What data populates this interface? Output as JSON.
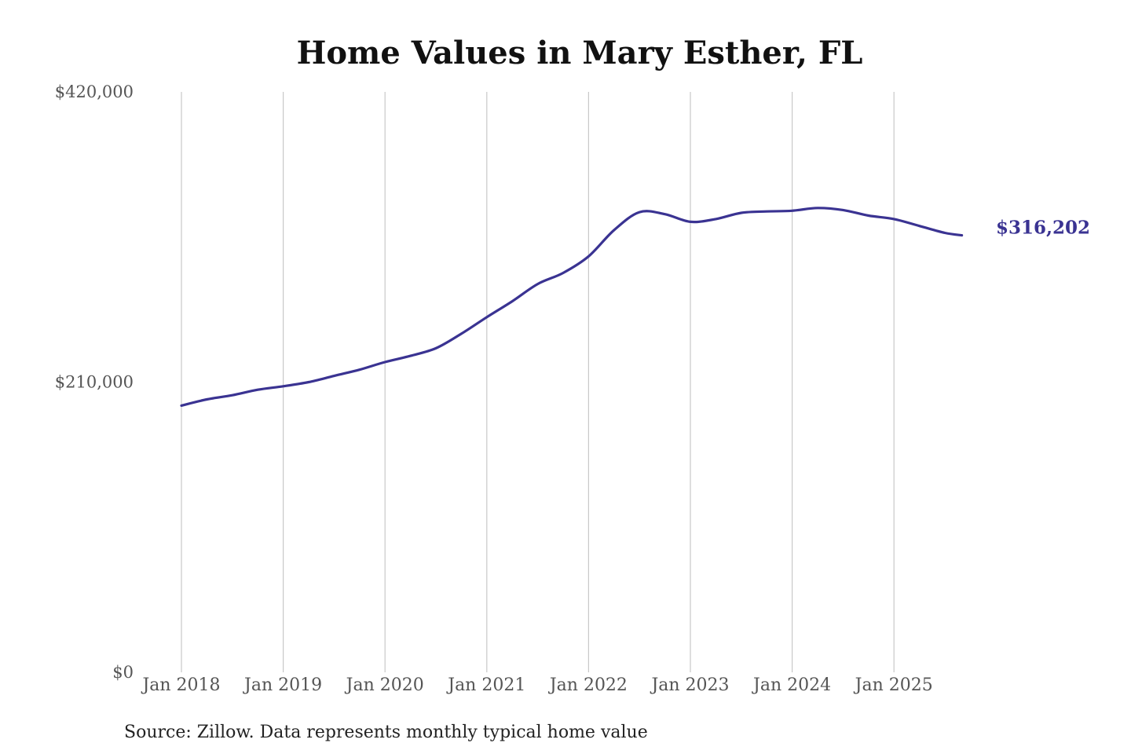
{
  "chart_data": {
    "type": "line",
    "title": "Home Values in Mary Esther, FL",
    "xlabel": "",
    "ylabel": "",
    "ylim": [
      0,
      420000
    ],
    "x_ticks": [
      "Jan 2018",
      "Jan 2019",
      "Jan 2020",
      "Jan 2021",
      "Jan 2022",
      "Jan 2023",
      "Jan 2024",
      "Jan 2025"
    ],
    "y_ticks": [
      {
        "value": 0,
        "label": "$0"
      },
      {
        "value": 210000,
        "label": "$210,000"
      },
      {
        "value": 420000,
        "label": "$420,000"
      }
    ],
    "grid": "vertical",
    "legend": "none",
    "series": [
      {
        "color": "#3a3392",
        "points": [
          {
            "x": "2018-01",
            "y": 193000
          },
          {
            "x": "2018-04",
            "y": 197500
          },
          {
            "x": "2018-07",
            "y": 200500
          },
          {
            "x": "2018-10",
            "y": 204500
          },
          {
            "x": "2019-01",
            "y": 207000
          },
          {
            "x": "2019-04",
            "y": 210000
          },
          {
            "x": "2019-07",
            "y": 214500
          },
          {
            "x": "2019-10",
            "y": 219000
          },
          {
            "x": "2020-01",
            "y": 224500
          },
          {
            "x": "2020-04",
            "y": 229000
          },
          {
            "x": "2020-07",
            "y": 234500
          },
          {
            "x": "2020-10",
            "y": 245000
          },
          {
            "x": "2021-01",
            "y": 257000
          },
          {
            "x": "2021-04",
            "y": 268500
          },
          {
            "x": "2021-07",
            "y": 281000
          },
          {
            "x": "2021-10",
            "y": 289000
          },
          {
            "x": "2022-01",
            "y": 301000
          },
          {
            "x": "2022-04",
            "y": 320000
          },
          {
            "x": "2022-07",
            "y": 333000
          },
          {
            "x": "2022-10",
            "y": 331500
          },
          {
            "x": "2023-01",
            "y": 326000
          },
          {
            "x": "2023-04",
            "y": 328000
          },
          {
            "x": "2023-07",
            "y": 332500
          },
          {
            "x": "2023-10",
            "y": 333500
          },
          {
            "x": "2024-01",
            "y": 334000
          },
          {
            "x": "2024-04",
            "y": 336000
          },
          {
            "x": "2024-07",
            "y": 334500
          },
          {
            "x": "2024-10",
            "y": 330500
          },
          {
            "x": "2025-01",
            "y": 328000
          },
          {
            "x": "2025-04",
            "y": 323000
          },
          {
            "x": "2025-07",
            "y": 318000
          },
          {
            "x": "2025-09",
            "y": 316202
          }
        ]
      }
    ],
    "end_label": "$316,202"
  },
  "source_note": "Source: Zillow. Data represents monthly typical home value"
}
